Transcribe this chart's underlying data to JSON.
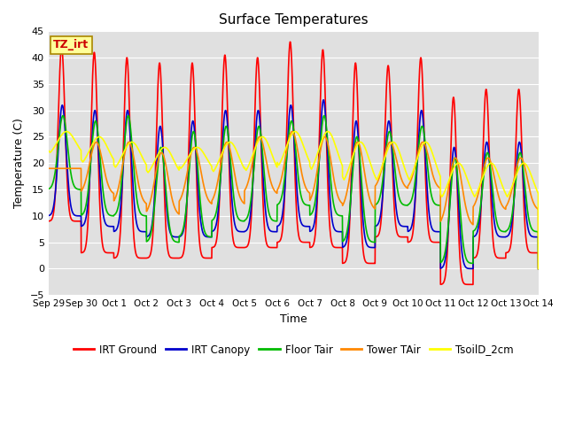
{
  "title": "Surface Temperatures",
  "ylabel": "Temperature (C)",
  "xlabel": "Time",
  "annotation_text": "TZ_irt",
  "annotation_bg": "#ffff99",
  "annotation_border": "#aa8800",
  "annotation_fg": "#cc0000",
  "ylim": [
    -5,
    45
  ],
  "bg_color": "#e0e0e0",
  "fig_color": "#ffffff",
  "grid_color": "#ffffff",
  "tick_labels": [
    "Sep 29",
    "Sep 30",
    "Oct 1",
    "Oct 2",
    "Oct 3",
    "Oct 4",
    "Oct 5",
    "Oct 6",
    "Oct 7",
    "Oct 8",
    "Oct 9",
    "Oct 10",
    "Oct 11",
    "Oct 12",
    "Oct 13",
    "Oct 14"
  ],
  "series": [
    {
      "label": "IRT Ground",
      "color": "#ff0000",
      "lw": 1.2
    },
    {
      "label": "IRT Canopy",
      "color": "#0000cc",
      "lw": 1.2
    },
    {
      "label": "Floor Tair",
      "color": "#00bb00",
      "lw": 1.2
    },
    {
      "label": "Tower TAir",
      "color": "#ff8800",
      "lw": 1.2
    },
    {
      "label": "TsoilD_2cm",
      "color": "#ffff00",
      "lw": 1.2
    }
  ],
  "n_days": 15,
  "irt_ground_peaks": [
    42,
    41,
    40,
    39,
    39,
    40.5,
    40,
    43,
    41.5,
    39,
    38.5,
    40,
    32.5,
    34,
    34
  ],
  "irt_ground_mins": [
    9,
    3,
    2,
    2,
    2,
    4,
    4,
    5,
    4,
    1,
    6,
    5,
    -3,
    2,
    3
  ],
  "canopy_peaks": [
    31,
    30,
    30,
    27,
    28,
    30,
    30,
    31,
    32,
    28,
    28,
    30,
    23,
    24,
    24
  ],
  "canopy_mins": [
    10,
    8,
    7,
    6,
    6,
    7,
    7,
    8,
    7,
    4,
    8,
    7,
    0,
    6,
    6
  ],
  "floor_peaks": [
    29,
    28,
    29,
    23,
    26,
    27,
    27,
    28,
    29,
    25,
    26,
    27,
    21,
    22,
    22
  ],
  "floor_mins": [
    15,
    10,
    10,
    5,
    6,
    9,
    9,
    12,
    10,
    5,
    12,
    12,
    1,
    7,
    7
  ],
  "tower_peaks": [
    19,
    24,
    24,
    22,
    23,
    24,
    25,
    26,
    25,
    24,
    24,
    24,
    21,
    21,
    21
  ],
  "tower_mins": [
    19,
    14,
    12,
    10,
    12,
    12,
    14,
    14,
    12,
    11,
    15,
    15,
    8,
    11,
    11
  ],
  "soil_peaks": [
    26,
    25,
    24,
    23,
    23,
    24,
    25,
    26,
    26,
    24,
    24,
    24,
    20,
    20,
    20
  ],
  "soil_mins": [
    21,
    19,
    18,
    17,
    18,
    17,
    17,
    18,
    17,
    15,
    15,
    15,
    12,
    12,
    12
  ]
}
